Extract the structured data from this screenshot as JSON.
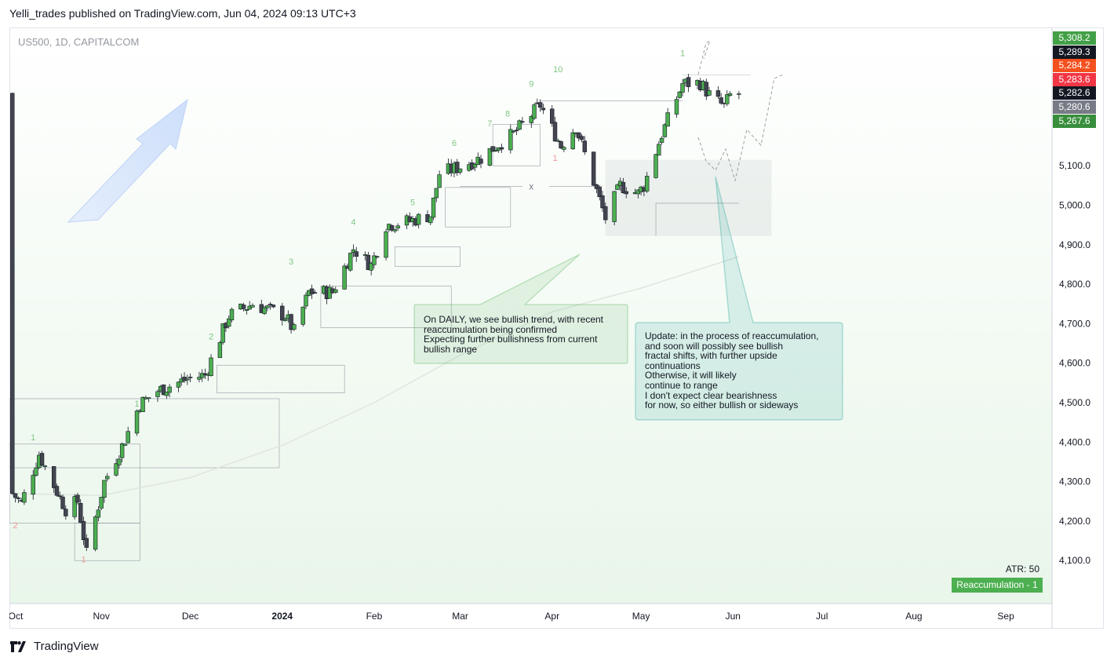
{
  "header": {
    "text": "Yelli_trades published on TradingView.com, Jun 04, 2024 09:13 UTC+3"
  },
  "symbol": {
    "text": "US500, 1D, CAPITALCOM"
  },
  "notes": {
    "daily": "On DAILY, we see bullish trend, with recent\nreaccumulation being confirmed\nExpecting further bullishness from current\nbullish range",
    "update": "Update: in the process of reaccumulation,\nand soon will possibly see bullish\nfractal shifts, with further upside\ncontinuations\nOtherwise, it will likely\ncontinue to range\nI don't expect clear bearishness\nfor now, so either bullish or sideways"
  },
  "indicator": {
    "atr": "ATR: 50",
    "badge": "Reaccumulation - 1"
  },
  "footer": {
    "logo_text": "TradingView"
  },
  "colors": {
    "up": "#4caf50",
    "down": "#434651",
    "accent": "#2962ff"
  },
  "price_tags": [
    {
      "value": "5,308.2",
      "color": "#43a047"
    },
    {
      "value": "5,289.3",
      "color": "#131722"
    },
    {
      "value": "5,284.2",
      "color": "#f4511e"
    },
    {
      "value": "5,283.6",
      "color": "#f23645"
    },
    {
      "value": "5,282.6",
      "color": "#131722"
    },
    {
      "value": "5,280.6",
      "color": "#787b86"
    },
    {
      "value": "5,267.6",
      "color": "#388e3c"
    }
  ],
  "chart_data": {
    "type": "candlestick",
    "title": "US500, 1D, CAPITALCOM",
    "xlabel": "",
    "ylabel": "",
    "ylim": [
      4000,
      5360
    ],
    "y_ticks": [
      "5,100.0",
      "5,000.0",
      "4,900.0",
      "4,800.0",
      "4,700.0",
      "4,600.0",
      "4,500.0",
      "4,400.0",
      "4,300.0",
      "4,200.0",
      "4,100.0"
    ],
    "x_ticks": [
      "Oct",
      "Nov",
      "Dec",
      "2024",
      "Feb",
      "Mar",
      "Apr",
      "May",
      "Jun",
      "Jul",
      "Aug",
      "Sep"
    ],
    "grid": false,
    "wave_labels_green": [
      "1",
      "1",
      "2",
      "3",
      "4",
      "5",
      "6",
      "7",
      "8",
      "9",
      "10",
      "1"
    ],
    "wave_labels_red": [
      "2",
      "1",
      "1"
    ],
    "marker": "x",
    "moving_average_approx": [
      [
        "2023-10-01",
        4270
      ],
      [
        "2023-11-01",
        4265
      ],
      [
        "2023-12-01",
        4310
      ],
      [
        "2024-01-02",
        4395
      ],
      [
        "2024-02-01",
        4500
      ],
      [
        "2024-03-01",
        4620
      ],
      [
        "2024-04-01",
        4730
      ],
      [
        "2024-05-01",
        4790
      ],
      [
        "2024-06-03",
        4870
      ]
    ],
    "series": [
      {
        "name": "",
        "ohlc_daily_approx": [
          [
            "2023-10-02",
            4288,
            4310,
            4252,
            4270
          ],
          [
            "2023-10-16",
            4330,
            4350,
            4270,
            4290
          ],
          [
            "2023-10-27",
            4150,
            4160,
            4103,
            4117
          ],
          [
            "2023-11-14",
            4420,
            4505,
            4410,
            4497
          ],
          [
            "2023-12-14",
            4715,
            4740,
            4700,
            4720
          ],
          [
            "2024-01-02",
            4745,
            4755,
            4700,
            4720
          ],
          [
            "2024-01-31",
            4930,
            4940,
            4845,
            4848
          ],
          [
            "2024-02-29",
            5080,
            5100,
            5060,
            5095
          ],
          [
            "2024-03-28",
            5250,
            5265,
            5240,
            5254
          ],
          [
            "2024-04-19",
            5010,
            5030,
            4940,
            4967
          ],
          [
            "2024-05-15",
            5245,
            5310,
            5240,
            5308
          ],
          [
            "2024-05-31",
            5235,
            5280,
            5190,
            5278
          ],
          [
            "2024-06-03",
            5282,
            5300,
            5240,
            5283
          ]
        ]
      }
    ]
  }
}
